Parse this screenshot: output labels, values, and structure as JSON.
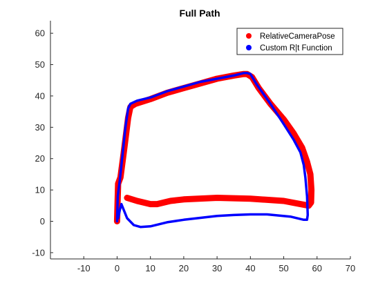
{
  "chart_data": {
    "type": "line",
    "title": "Full Path",
    "xlabel": "",
    "ylabel": "",
    "xlim": [
      -20,
      70
    ],
    "ylim": [
      -12,
      64
    ],
    "xticks": [
      -10,
      0,
      10,
      20,
      30,
      40,
      50,
      60,
      70
    ],
    "yticks": [
      -10,
      0,
      10,
      20,
      30,
      40,
      50,
      60
    ],
    "grid": false,
    "legend_position": "top-right",
    "series": [
      {
        "name": "RelativeCameraPose",
        "color": "#ff0000",
        "marker": "dot-thick",
        "x": [
          0,
          0.3,
          1.0,
          2.0,
          3.3,
          4.0,
          5.5,
          10.0,
          15.0,
          20.0,
          25.0,
          30.0,
          35.0,
          38.0,
          39.0,
          40.5,
          42.5,
          46.0,
          50.0,
          53.0,
          55.5,
          57.0,
          58.0,
          58.3,
          58.2,
          57.5,
          55.0,
          50.0,
          40.0,
          30.0,
          20.0,
          16.0,
          12.0,
          10.0,
          6.0,
          3.0
        ],
        "y": [
          0,
          12.0,
          14.0,
          22.0,
          33.0,
          36.5,
          37.5,
          39.0,
          41.0,
          42.5,
          44.0,
          45.5,
          46.5,
          47.0,
          47.0,
          46.0,
          42.5,
          37.5,
          32.5,
          28.0,
          23.5,
          19.0,
          15.0,
          10.0,
          6.0,
          5.0,
          5.5,
          6.5,
          7.2,
          7.5,
          7.0,
          6.5,
          5.5,
          5.5,
          6.5,
          7.5
        ]
      },
      {
        "name": "Custom R|t Function",
        "color": "#0000ff",
        "marker": "dot-thin",
        "x": [
          0,
          0.2,
          0.8,
          1.5,
          2.5,
          3.3,
          4.0,
          6.0,
          10.0,
          15.0,
          20.0,
          25.0,
          30.0,
          35.0,
          38.0,
          39.0,
          40.0,
          42.0,
          46.0,
          50.0,
          53.0,
          55.0,
          56.0,
          56.5,
          57.0,
          57.2,
          57.0,
          56.0,
          52.0,
          45.0,
          40.0,
          35.0,
          30.0,
          20.0,
          15.0,
          10.0,
          7.0,
          5.0,
          3.0,
          1.3,
          0.8,
          0.3
        ],
        "y": [
          0,
          8.0,
          13.0,
          20.0,
          30.0,
          36.0,
          37.5,
          38.5,
          39.5,
          41.5,
          43.0,
          44.5,
          45.5,
          46.5,
          47.3,
          47.3,
          47.0,
          43.5,
          37.5,
          31.0,
          26.0,
          22.0,
          18.0,
          14.0,
          8.0,
          2.0,
          0.5,
          0.5,
          1.5,
          2.2,
          2.2,
          2.0,
          1.7,
          0.5,
          -0.3,
          -1.6,
          -1.8,
          -1.2,
          1.0,
          5.5,
          3.5,
          1.0
        ]
      }
    ]
  }
}
